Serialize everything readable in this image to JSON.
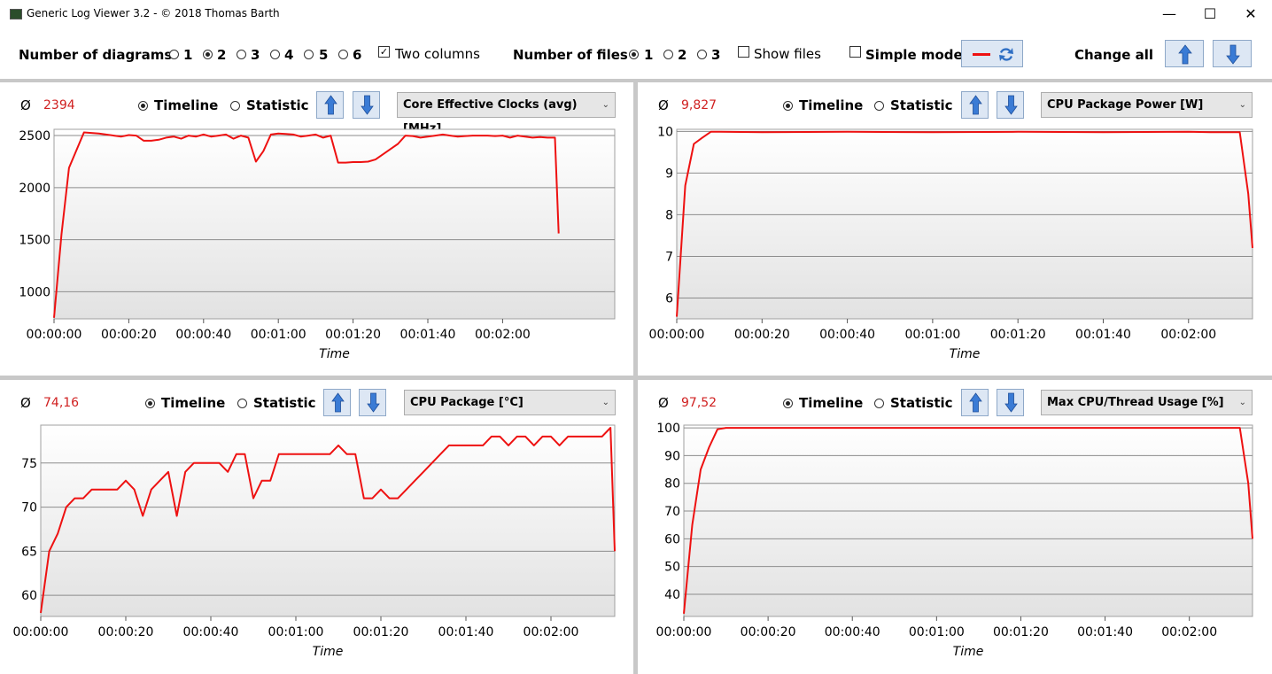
{
  "window": {
    "title": "Generic Log Viewer 3.2 - © 2018 Thomas Barth",
    "minimize_glyph": "—",
    "maximize_glyph": "☐",
    "close_glyph": "✕"
  },
  "toolbar": {
    "diagrams_label": "Number of diagrams",
    "diagram_options": [
      "1",
      "2",
      "3",
      "4",
      "5",
      "6"
    ],
    "diagrams_selected": "2",
    "two_columns_label": "Two columns",
    "two_columns_checked": true,
    "files_label": "Number of files",
    "file_options": [
      "1",
      "2",
      "3"
    ],
    "files_selected": "1",
    "show_files_label": "Show files",
    "show_files_checked": false,
    "simple_mode_label": "Simple mode",
    "simple_mode_checked": false,
    "change_all_label": "Change all"
  },
  "colors": {
    "series": "#ee1111",
    "accent": "#3a7bd5",
    "average": "#d02020"
  },
  "panels": [
    {
      "avg_symbol": "Ø",
      "avg_value": "2394",
      "timeline_label": "Timeline",
      "statistic_label": "Statistic",
      "mode": "timeline",
      "sensor": "Core Effective Clocks (avg) [MHz]"
    },
    {
      "avg_symbol": "Ø",
      "avg_value": "9,827",
      "timeline_label": "Timeline",
      "statistic_label": "Statistic",
      "mode": "timeline",
      "sensor": "CPU Package Power [W]"
    },
    {
      "avg_symbol": "Ø",
      "avg_value": "74,16",
      "timeline_label": "Timeline",
      "statistic_label": "Statistic",
      "mode": "timeline",
      "sensor": "CPU Package [°C]"
    },
    {
      "avg_symbol": "Ø",
      "avg_value": "97,52",
      "timeline_label": "Timeline",
      "statistic_label": "Statistic",
      "mode": "timeline",
      "sensor": "Max CPU/Thread Usage [%]"
    }
  ],
  "chart_data": [
    {
      "type": "line",
      "xlabel": "Time",
      "ylabel": "",
      "xlim": [
        0,
        150
      ],
      "ylim": [
        740,
        2560
      ],
      "x_ticks": [
        0,
        20,
        40,
        60,
        80,
        100,
        120
      ],
      "x_tick_labels": [
        "00:00:00",
        "00:00:20",
        "00:00:40",
        "00:01:00",
        "00:01:20",
        "00:01:40",
        "00:02:00"
      ],
      "y_ticks": [
        1000,
        1500,
        2000,
        2500
      ],
      "y_tick_labels": [
        "1000",
        "1500",
        "2000",
        "2500"
      ],
      "grid": true,
      "series": [
        {
          "x": [
            0,
            2,
            4,
            8,
            12,
            16,
            18,
            20,
            22,
            24,
            26,
            28,
            30,
            32,
            34,
            36,
            38,
            40,
            42,
            44,
            46,
            48,
            50,
            52,
            54,
            56,
            58,
            60,
            62,
            64,
            66,
            68,
            70,
            72,
            74,
            76,
            78,
            80,
            82,
            84,
            86,
            88,
            90,
            92,
            94,
            96,
            98,
            100,
            102,
            104,
            106,
            108,
            110,
            112,
            114,
            116,
            118,
            120,
            122,
            124,
            126,
            128,
            130,
            132,
            134,
            135
          ],
          "y": [
            750,
            1550,
            2190,
            2530,
            2520,
            2500,
            2490,
            2505,
            2500,
            2450,
            2450,
            2460,
            2480,
            2490,
            2470,
            2500,
            2490,
            2510,
            2490,
            2500,
            2510,
            2470,
            2500,
            2480,
            2250,
            2350,
            2510,
            2520,
            2515,
            2510,
            2490,
            2500,
            2510,
            2480,
            2500,
            2240,
            2240,
            2245,
            2245,
            2250,
            2270,
            2320,
            2370,
            2420,
            2500,
            2495,
            2480,
            2490,
            2500,
            2510,
            2500,
            2490,
            2495,
            2500,
            2500,
            2500,
            2495,
            2500,
            2480,
            2500,
            2490,
            2480,
            2485,
            2480,
            2480,
            1560
          ]
        }
      ]
    },
    {
      "type": "line",
      "xlabel": "Time",
      "ylabel": "",
      "xlim": [
        0,
        135
      ],
      "ylim": [
        5.5,
        10.05
      ],
      "x_ticks": [
        0,
        20,
        40,
        60,
        80,
        100,
        120
      ],
      "x_tick_labels": [
        "00:00:00",
        "00:00:20",
        "00:00:40",
        "00:01:00",
        "00:01:20",
        "00:01:40",
        "00:02:00"
      ],
      "y_ticks": [
        6,
        7,
        8,
        9,
        10
      ],
      "y_tick_labels": [
        "6",
        "7",
        "8",
        "9",
        "10"
      ],
      "grid": true,
      "series": [
        {
          "x": [
            0,
            2,
            4,
            6,
            8,
            10,
            20,
            40,
            60,
            80,
            100,
            120,
            125,
            132,
            134,
            135
          ],
          "y": [
            5.55,
            8.7,
            9.7,
            9.85,
            9.99,
            9.99,
            9.98,
            9.99,
            9.98,
            9.99,
            9.98,
            9.99,
            9.98,
            9.98,
            8.5,
            7.2
          ]
        }
      ]
    },
    {
      "type": "line",
      "xlabel": "Time",
      "ylabel": "",
      "xlim": [
        0,
        135
      ],
      "ylim": [
        57.6,
        79.3
      ],
      "x_ticks": [
        0,
        20,
        40,
        60,
        80,
        100,
        120
      ],
      "x_tick_labels": [
        "00:00:00",
        "00:00:20",
        "00:00:40",
        "00:01:00",
        "00:01:20",
        "00:01:40",
        "00:02:00"
      ],
      "y_ticks": [
        60,
        65,
        70,
        75
      ],
      "y_tick_labels": [
        "60",
        "65",
        "70",
        "75"
      ],
      "grid": true,
      "series": [
        {
          "x": [
            0,
            2,
            4,
            6,
            8,
            10,
            12,
            14,
            16,
            18,
            20,
            22,
            24,
            26,
            28,
            30,
            32,
            34,
            36,
            38,
            40,
            42,
            44,
            46,
            48,
            50,
            52,
            54,
            56,
            58,
            60,
            62,
            64,
            66,
            68,
            70,
            72,
            74,
            76,
            78,
            80,
            82,
            84,
            86,
            88,
            90,
            92,
            94,
            96,
            98,
            100,
            102,
            104,
            106,
            108,
            110,
            112,
            114,
            116,
            118,
            120,
            122,
            124,
            126,
            128,
            130,
            132,
            134,
            135
          ],
          "y": [
            58,
            65,
            67,
            70,
            71,
            71,
            72,
            72,
            72,
            72,
            73,
            72,
            69,
            72,
            73,
            74,
            69,
            74,
            75,
            75,
            75,
            75,
            74,
            76,
            76,
            71,
            73,
            73,
            76,
            76,
            76,
            76,
            76,
            76,
            76,
            77,
            76,
            76,
            71,
            71,
            72,
            71,
            71,
            72,
            73,
            74,
            75,
            76,
            77,
            77,
            77,
            77,
            77,
            78,
            78,
            77,
            78,
            78,
            77,
            78,
            78,
            77,
            78,
            78,
            78,
            78,
            78,
            79,
            65
          ]
        }
      ]
    },
    {
      "type": "line",
      "xlabel": "Time",
      "ylabel": "",
      "xlim": [
        0,
        135
      ],
      "ylim": [
        32,
        101
      ],
      "x_ticks": [
        0,
        20,
        40,
        60,
        80,
        100,
        120
      ],
      "x_tick_labels": [
        "00:00:00",
        "00:00:20",
        "00:00:40",
        "00:01:00",
        "00:01:20",
        "00:01:40",
        "00:02:00"
      ],
      "y_ticks": [
        40,
        50,
        60,
        70,
        80,
        90,
        100
      ],
      "y_tick_labels": [
        "40",
        "50",
        "60",
        "70",
        "80",
        "90",
        "100"
      ],
      "grid": true,
      "series": [
        {
          "x": [
            0,
            2,
            4,
            6,
            8,
            10,
            20,
            40,
            60,
            80,
            100,
            120,
            125,
            132,
            134,
            135
          ],
          "y": [
            33,
            65,
            85,
            93,
            99.5,
            100,
            100,
            100,
            100,
            100,
            100,
            100,
            100,
            100,
            80,
            60
          ]
        }
      ]
    }
  ]
}
